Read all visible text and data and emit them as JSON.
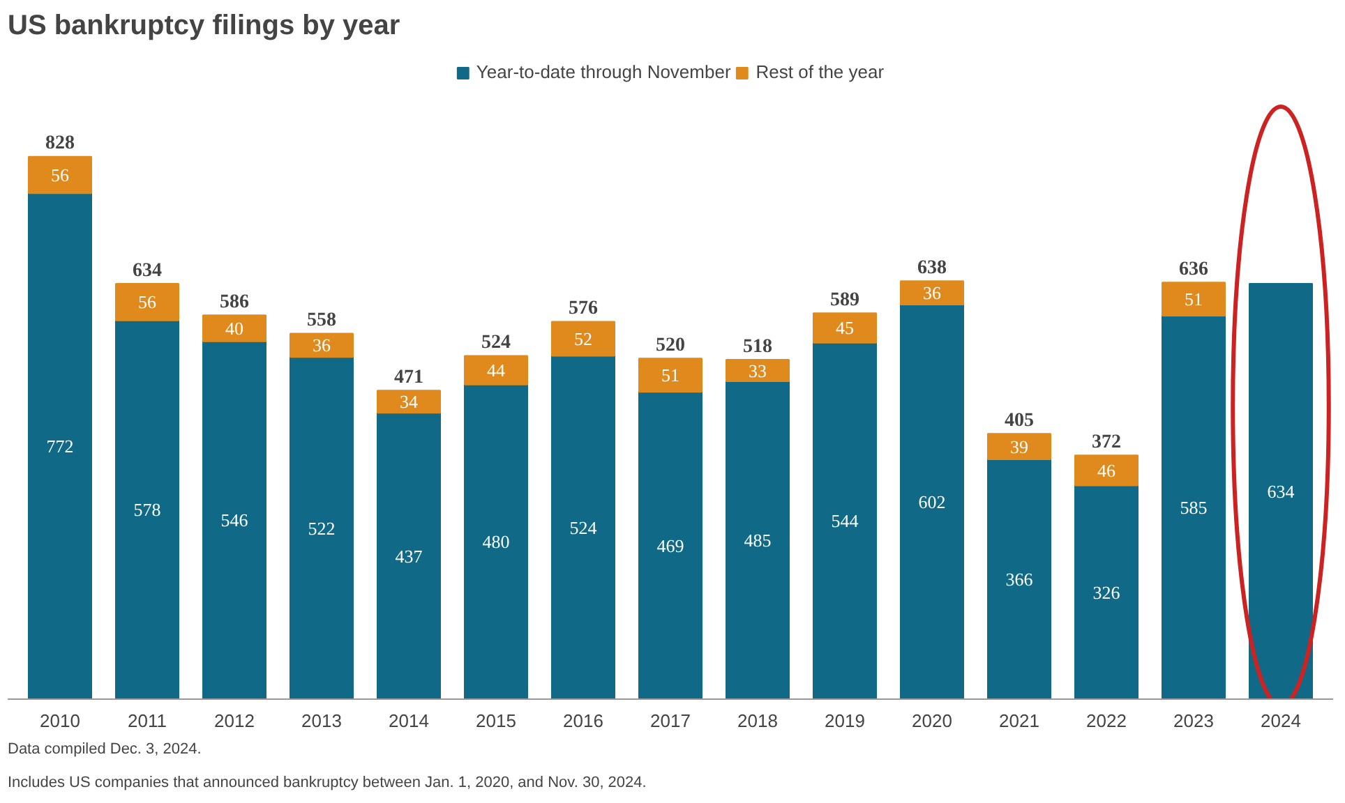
{
  "chart_data": {
    "type": "bar",
    "title": "US bankruptcy filings by year",
    "categories": [
      "2010",
      "2011",
      "2012",
      "2013",
      "2014",
      "2015",
      "2016",
      "2017",
      "2018",
      "2019",
      "2020",
      "2021",
      "2022",
      "2023",
      "2024"
    ],
    "stacked": true,
    "data_labels": true,
    "legend": "top",
    "grid": false,
    "series": [
      {
        "name": "Year-to-date through November",
        "color": "#106a87",
        "values": [
          772,
          578,
          546,
          522,
          437,
          480,
          524,
          469,
          485,
          544,
          602,
          366,
          326,
          585,
          634
        ]
      },
      {
        "name": "Rest of the year",
        "color": "#e08a1e",
        "values": [
          56,
          56,
          40,
          36,
          34,
          44,
          52,
          51,
          33,
          45,
          36,
          39,
          46,
          51,
          null
        ]
      }
    ],
    "totals": [
      "828",
      "634",
      "586",
      "558",
      "471",
      "524",
      "576",
      "520",
      "518",
      "589",
      "638",
      "405",
      "372",
      "636",
      null
    ],
    "annotations": [
      "Data compiled Dec. 3, 2024.",
      "Includes US companies that announced bankruptcy between Jan. 1, 2020, and Nov. 30, 2024."
    ]
  }
}
